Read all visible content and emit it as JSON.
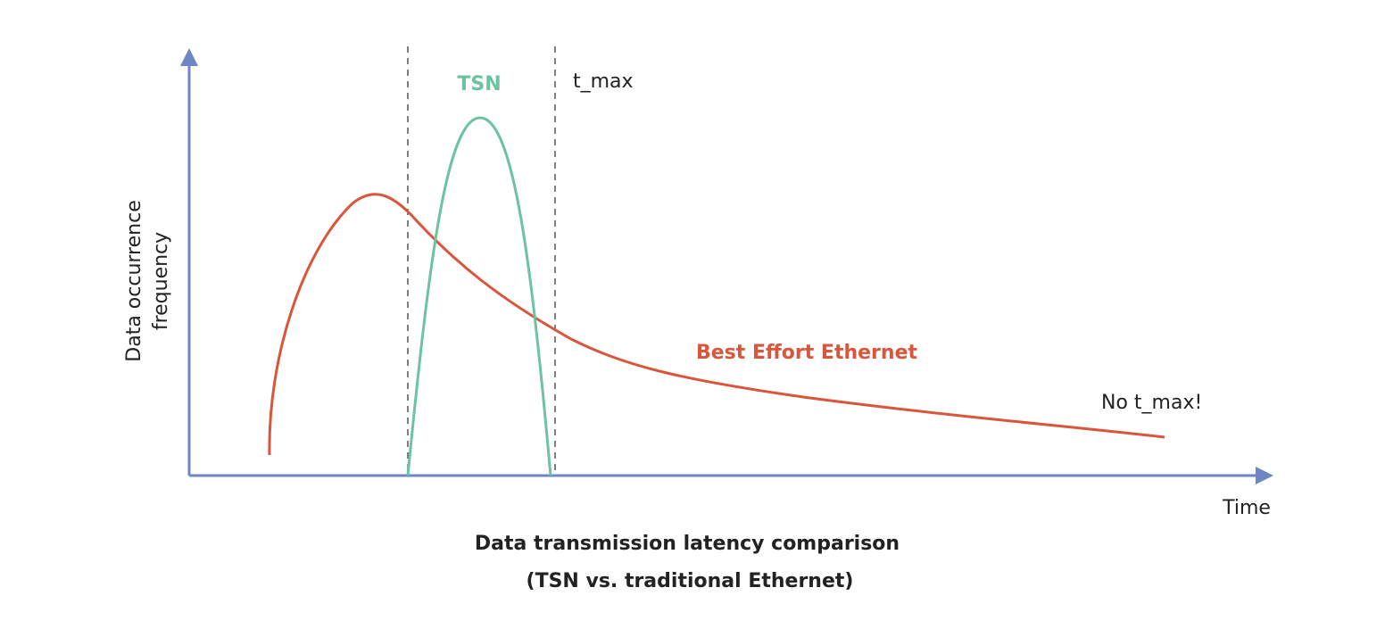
{
  "axes": {
    "y_label": [
      "Data occurrence",
      "frequency"
    ],
    "x_label": "Time"
  },
  "curves": [
    {
      "label": "TSN"
    },
    {
      "label": "Best Effort Ethernet"
    }
  ],
  "annotations": {
    "t_max": "t_max",
    "no_t_max": "No t_max!"
  },
  "caption": [
    "Data transmission latency comparison",
    "(TSN vs. traditional Ethernet)"
  ]
}
